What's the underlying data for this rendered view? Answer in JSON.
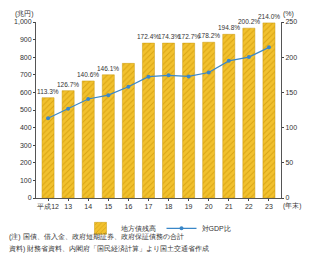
{
  "chart_data": {
    "type": "bar",
    "categories": [
      "平成12",
      "13",
      "14",
      "15",
      "16",
      "17",
      "18",
      "19",
      "20",
      "21",
      "22",
      "23"
    ],
    "series": [
      {
        "name": "地方債残高",
        "type": "bar",
        "color": "#f2c12e",
        "marker": "hatch",
        "values": [
          570,
          610,
          665,
          700,
          765,
          880,
          880,
          880,
          885,
          930,
          965,
          995
        ]
      },
      {
        "name": "対GDP比",
        "type": "line",
        "axis": "y2",
        "color": "#3a87c8",
        "marker": "circle",
        "values": [
          113.3,
          126.7,
          140.6,
          146.1,
          158.0,
          172.4,
          174.3,
          172.7,
          178.2,
          194.8,
          200.2,
          214.0
        ],
        "value_labels": [
          "113.3%",
          "126.7%",
          "140.6%",
          "146.1%",
          null,
          "172.4%",
          "174.3%",
          "172.7%",
          "178.2%",
          "194.8%",
          "200.2%",
          "214.0%"
        ],
        "data_labels": true
      }
    ],
    "ylim": [
      0,
      1000
    ],
    "yticks": [
      0,
      100,
      200,
      300,
      400,
      500,
      600,
      700,
      800,
      900,
      {
        "value": 1000,
        "label": "1,000"
      }
    ],
    "y2lim": [
      0,
      250
    ],
    "y2ticks": [
      0,
      50,
      100,
      150,
      200,
      250
    ],
    "y_label": "(兆円)",
    "y2_label": "(%)",
    "x_label": "(年末)",
    "legend": "bottom",
    "grid": false,
    "notes": [
      "(注) 国債、借入金、政府短期証券、政府保証債務の合計",
      "資料) 財務省資料、内閣府「国民経済計算」より国土交通省作成"
    ]
  }
}
